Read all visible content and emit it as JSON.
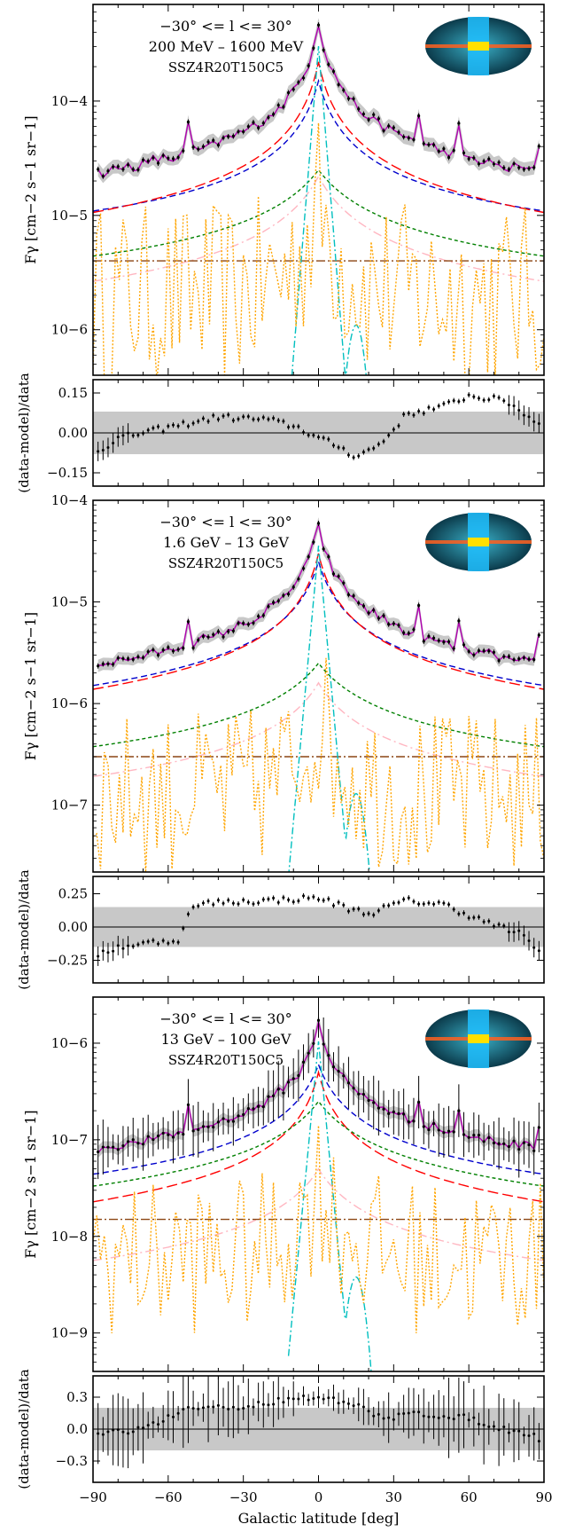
{
  "chart_data": [
    {
      "type": "line",
      "role": "flux",
      "range_line1": "−30° <= l <= 30°",
      "range_line2": "200 MeV – 1600 MeV",
      "model_label": "SSZ4R20T150C5",
      "ylabel": "Fγ [cm−2 s−1 sr−1]",
      "yscale": "log",
      "ylim": [
        4e-07,
        0.0007
      ],
      "yticks": [
        {
          "value": 1e-06,
          "label": "10−6"
        },
        {
          "value": 1e-05,
          "label": "10−5"
        },
        {
          "value": 0.0001,
          "label": "10−4"
        }
      ],
      "xlim": [
        -90,
        90
      ],
      "peak": 0.00055,
      "wing": 1.4e-05,
      "floor": 7e-06,
      "series": [
        {
          "name": "",
          "color": "#0000cc",
          "dash": "7,4",
          "base": 3.2e-06,
          "peak": 0.00015,
          "w": 5
        },
        {
          "name": "",
          "color": "#ff0000",
          "dash": "12,5",
          "base": 1.3e-06,
          "peak": 0.00022,
          "w": 4
        },
        {
          "name": "",
          "color": "#008000",
          "dash": "4,3",
          "base": 1.2e-06,
          "peak": 2.5e-05,
          "w": 14
        },
        {
          "name": "",
          "color": "#ffb6c1",
          "dash": "10,4,2,4",
          "base": 5e-07,
          "peak": 2.2e-05,
          "w": 10
        },
        {
          "name": "",
          "color": "#8b4513",
          "dash": "10,3,2,3",
          "const": 4e-06
        },
        {
          "name": "",
          "color": "#00bfbf",
          "dash": "8,3,2,3",
          "type": "ics"
        },
        {
          "name": "",
          "color": "#ffa500",
          "dash": "2,2",
          "type": "noise",
          "base": 2e-06
        }
      ]
    },
    {
      "type": "scatter",
      "role": "residual",
      "ylabel": "(data-model)/data",
      "ylim": [
        -0.2,
        0.2
      ],
      "yticks": [
        {
          "value": 0.15,
          "label": "0.15"
        },
        {
          "value": 0.0,
          "label": "0.00"
        },
        {
          "value": -0.15,
          "label": "−0.15"
        }
      ],
      "band": 0.08,
      "profile": [
        [
          -90,
          -0.08
        ],
        [
          -80,
          -0.02
        ],
        [
          -60,
          0.02
        ],
        [
          -40,
          0.06
        ],
        [
          -20,
          0.05
        ],
        [
          -8,
          0.02
        ],
        [
          0,
          -0.02
        ],
        [
          8,
          -0.05
        ],
        [
          15,
          -0.09
        ],
        [
          25,
          -0.04
        ],
        [
          35,
          0.07
        ],
        [
          50,
          0.1
        ],
        [
          60,
          0.14
        ],
        [
          75,
          0.12
        ],
        [
          90,
          0.02
        ]
      ]
    },
    {
      "type": "line",
      "role": "flux",
      "range_line1": "−30° <= l <= 30°",
      "range_line2": "1.6 GeV – 13 GeV",
      "model_label": "SSZ4R20T150C5",
      "ylabel": "Fγ [cm−2 s−1 sr−1]",
      "yscale": "log",
      "ylim": [
        2.2e-08,
        0.0001
      ],
      "yticks": [
        {
          "value": 1e-07,
          "label": "10−7"
        },
        {
          "value": 1e-06,
          "label": "10−6"
        },
        {
          "value": 1e-05,
          "label": "10−5"
        },
        {
          "value": 0.0001,
          "label": "10−4"
        }
      ],
      "xlim": [
        -90,
        90
      ],
      "peak": 6.5e-05,
      "wing": 1.1e-06,
      "floor": 4.5e-07,
      "series": [
        {
          "name": "",
          "color": "#0000cc",
          "dash": "7,4",
          "base": 2e-07,
          "peak": 2.5e-05,
          "w": 5
        },
        {
          "name": "",
          "color": "#ff0000",
          "dash": "12,5",
          "base": 1.1e-07,
          "peak": 3e-05,
          "w": 4
        },
        {
          "name": "",
          "color": "#008000",
          "dash": "4,3",
          "base": 7e-08,
          "peak": 2.5e-06,
          "w": 13
        },
        {
          "name": "",
          "color": "#ffb6c1",
          "dash": "10,4,2,4",
          "base": 3.5e-08,
          "peak": 1.6e-06,
          "w": 10
        },
        {
          "name": "",
          "color": "#8b4513",
          "dash": "10,3,2,3",
          "const": 3e-07
        },
        {
          "name": "",
          "color": "#00bfbf",
          "dash": "8,3,2,3",
          "type": "ics"
        },
        {
          "name": "",
          "color": "#ffa500",
          "dash": "2,2",
          "type": "noise",
          "base": 1.3e-07
        }
      ]
    },
    {
      "type": "scatter",
      "role": "residual",
      "ylabel": "(data-model)/data",
      "ylim": [
        -0.42,
        0.38
      ],
      "yticks": [
        {
          "value": 0.25,
          "label": "0.25"
        },
        {
          "value": 0.0,
          "label": "0.00"
        },
        {
          "value": -0.25,
          "label": "−0.25"
        }
      ],
      "band": 0.15,
      "profile": [
        [
          -90,
          -0.22
        ],
        [
          -80,
          -0.15
        ],
        [
          -60,
          -0.1
        ],
        [
          -55,
          -0.1
        ],
        [
          -52,
          0.12
        ],
        [
          -45,
          0.18
        ],
        [
          -20,
          0.2
        ],
        [
          0,
          0.22
        ],
        [
          12,
          0.14
        ],
        [
          20,
          0.1
        ],
        [
          35,
          0.2
        ],
        [
          50,
          0.17
        ],
        [
          65,
          0.05
        ],
        [
          80,
          -0.05
        ],
        [
          90,
          -0.2
        ]
      ]
    },
    {
      "type": "line",
      "role": "flux",
      "range_line1": "−30° <= l <= 30°",
      "range_line2": "13 GeV – 100 GeV",
      "model_label": "SSZ4R20T150C5",
      "ylabel": "Fγ [cm−2 s−1 sr−1]",
      "yscale": "log",
      "ylim": [
        4e-10,
        3e-06
      ],
      "yticks": [
        {
          "value": 1e-09,
          "label": "10−9"
        },
        {
          "value": 1e-08,
          "label": "10−8"
        },
        {
          "value": 1e-07,
          "label": "10−7"
        },
        {
          "value": 1e-06,
          "label": "10−6"
        }
      ],
      "xlim": [
        -90,
        90
      ],
      "peak": 1.9e-06,
      "wing": 5e-08,
      "floor": 2.3e-08,
      "series": [
        {
          "name": "",
          "color": "#0000cc",
          "dash": "7,4",
          "base": 7e-09,
          "peak": 6e-07,
          "w": 6
        },
        {
          "name": "",
          "color": "#ff0000",
          "dash": "12,5",
          "base": 1.6e-09,
          "peak": 5e-07,
          "w": 4
        },
        {
          "name": "",
          "color": "#008000",
          "dash": "4,3",
          "base": 4.2e-09,
          "peak": 2.5e-07,
          "w": 12
        },
        {
          "name": "",
          "color": "#ffb6c1",
          "dash": "10,4,2,4",
          "base": 7e-10,
          "peak": 5e-08,
          "w": 10
        },
        {
          "name": "",
          "color": "#8b4513",
          "dash": "10,3,2,3",
          "const": 1.5e-08
        },
        {
          "name": "",
          "color": "#00bfbf",
          "dash": "8,3,2,3",
          "type": "ics"
        },
        {
          "name": "",
          "color": "#ffa500",
          "dash": "2,2",
          "type": "noise",
          "base": 6e-09
        }
      ]
    },
    {
      "type": "scatter",
      "role": "residual",
      "ylabel": "(data-model)/data",
      "ylim": [
        -0.5,
        0.5
      ],
      "yticks": [
        {
          "value": 0.3,
          "label": "0.3"
        },
        {
          "value": 0.0,
          "label": "0.0"
        },
        {
          "value": -0.3,
          "label": "−0.3"
        }
      ],
      "band": 0.2,
      "profile": [
        [
          -90,
          -0.05
        ],
        [
          -70,
          0.0
        ],
        [
          -50,
          0.2
        ],
        [
          -30,
          0.2
        ],
        [
          -10,
          0.3
        ],
        [
          0,
          0.3
        ],
        [
          15,
          0.22
        ],
        [
          25,
          0.1
        ],
        [
          40,
          0.15
        ],
        [
          60,
          0.1
        ],
        [
          75,
          0.0
        ],
        [
          90,
          -0.1
        ]
      ],
      "xlabel": "Galactic latitude [deg]",
      "xticks": [
        {
          "value": -90,
          "label": "−90"
        },
        {
          "value": -60,
          "label": "−60"
        },
        {
          "value": -30,
          "label": "−30"
        },
        {
          "value": 0,
          "label": "0"
        },
        {
          "value": 30,
          "label": "30"
        },
        {
          "value": 60,
          "label": "60"
        },
        {
          "value": 90,
          "label": "90"
        }
      ]
    }
  ]
}
